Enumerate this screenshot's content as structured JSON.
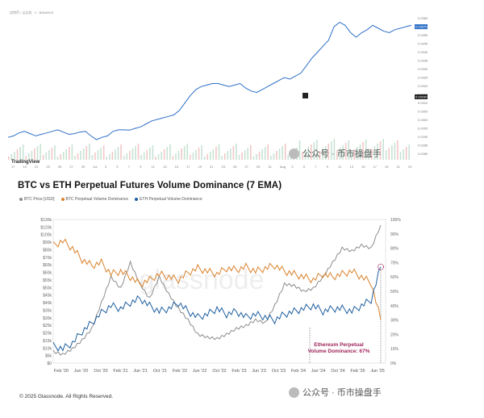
{
  "tradingview_panel": {
    "header_text": "比特币 / 以太坊 · 1 · BINANCE",
    "logo": "TradingView",
    "x_ticks": [
      "17",
      "19",
      "21",
      "23",
      "25",
      "27",
      "29",
      "Jul",
      "3",
      "5",
      "7",
      "9",
      "11",
      "13",
      "15",
      "17",
      "19",
      "21",
      "23",
      "25",
      "27",
      "29",
      "31",
      "Aug",
      "3",
      "5",
      "7",
      "9",
      "11",
      "13",
      "15",
      "17",
      "19",
      "21",
      "23"
    ],
    "y_ticks": [
      "0.03600",
      "0.03550",
      "0.03500",
      "0.03450",
      "0.03400",
      "0.03350",
      "0.03300",
      "0.03250",
      "0.03200",
      "0.03150",
      "0.03100",
      "0.03050",
      "0.03000",
      "0.02950",
      "0.02900",
      "0.02850",
      "0.02800"
    ],
    "price_tag": "0.03670",
    "marker_tag": "0.03230",
    "series": [
      0.0295,
      0.0296,
      0.0298,
      0.0299,
      0.02975,
      0.0296,
      0.0297,
      0.0298,
      0.0299,
      0.03,
      0.02985,
      0.0297,
      0.02975,
      0.02985,
      0.0299,
      0.0296,
      0.02935,
      0.0295,
      0.0296,
      0.0299,
      0.03,
      0.03,
      0.02998,
      0.0301,
      0.0302,
      0.0304,
      0.0306,
      0.0307,
      0.0308,
      0.0309,
      0.031,
      0.0313,
      0.0318,
      0.0323,
      0.0327,
      0.0329,
      0.033,
      0.0331,
      0.0331,
      0.033,
      0.0329,
      0.033,
      0.0331,
      0.0328,
      0.0326,
      0.0325,
      0.0327,
      0.0329,
      0.0331,
      0.0333,
      0.0335,
      0.0334,
      0.0336,
      0.0338,
      0.0343,
      0.0348,
      0.0352,
      0.0356,
      0.036,
      0.0369,
      0.0372,
      0.037,
      0.0365,
      0.0362,
      0.0365,
      0.0367,
      0.037,
      0.0368,
      0.0366,
      0.0365,
      0.0367,
      0.0368,
      0.0369,
      0.037
    ]
  },
  "chart_data": {
    "type": "line",
    "title": "BTC vs ETH Perpetual Futures Volume Dominance (7 EMA)",
    "x_tick_labels": [
      "Feb '20",
      "Jun '20",
      "Oct '20",
      "Feb '21",
      "Jun '21",
      "Oct '21",
      "Feb '22",
      "Jun '22",
      "Oct '22",
      "Feb '23",
      "Jun '23",
      "Oct '23",
      "Feb '24",
      "Jun '24",
      "Oct '24",
      "Feb '25",
      "Jun '25"
    ],
    "y_left_ticks": [
      "$0",
      "$5k",
      "$10k",
      "$15k",
      "$20k",
      "$25k",
      "$30k",
      "$35k",
      "$40k",
      "$45k",
      "$50k",
      "$55k",
      "$60k",
      "$65k",
      "$70k",
      "$80k",
      "$90k",
      "$100k",
      "$120k",
      "$130k"
    ],
    "y_right_ticks": [
      "0%",
      "10%",
      "20%",
      "30%",
      "40%",
      "50%",
      "60%",
      "70%",
      "80%",
      "90%",
      "100%"
    ],
    "series": [
      {
        "name": "BTC Price [USD]",
        "color": "#8c8c8c",
        "axis": "left",
        "values": [
          0.08,
          0.06,
          0.1,
          0.16,
          0.24,
          0.42,
          0.6,
          0.52,
          0.7,
          0.55,
          0.45,
          0.6,
          0.48,
          0.38,
          0.3,
          0.2,
          0.18,
          0.17,
          0.2,
          0.24,
          0.26,
          0.3,
          0.28,
          0.4,
          0.55,
          0.54,
          0.5,
          0.52,
          0.6,
          0.7,
          0.8,
          0.78,
          0.82,
          0.8,
          0.96
        ]
      },
      {
        "name": "BTC Perpetual Volume Dominance",
        "color": "#d9822b",
        "axis": "right",
        "values": [
          82,
          85,
          80,
          72,
          68,
          70,
          62,
          64,
          60,
          55,
          58,
          62,
          60,
          58,
          63,
          66,
          64,
          62,
          66,
          65,
          67,
          64,
          66,
          68,
          64,
          62,
          60,
          58,
          62,
          60,
          62,
          64,
          60,
          56,
          30
        ]
      },
      {
        "name": "ETH Perpetual Volume Dominance",
        "color": "#1f5f9f",
        "axis": "right",
        "values": [
          12,
          10,
          14,
          22,
          28,
          35,
          40,
          38,
          42,
          45,
          40,
          36,
          38,
          42,
          36,
          32,
          34,
          38,
          34,
          36,
          32,
          34,
          32,
          30,
          34,
          36,
          38,
          40,
          36,
          38,
          38,
          36,
          40,
          44,
          67
        ]
      }
    ],
    "annotation": {
      "text_line1": "Ethereum Perpetual",
      "text_line2": "Volume Dominance: 67%",
      "color": "#a0245c"
    },
    "watermark": "glassnode"
  },
  "copyright": "© 2025 Glassnode. All Rights Reserved.",
  "watermark_text": "公众号 · 币市操盘手"
}
